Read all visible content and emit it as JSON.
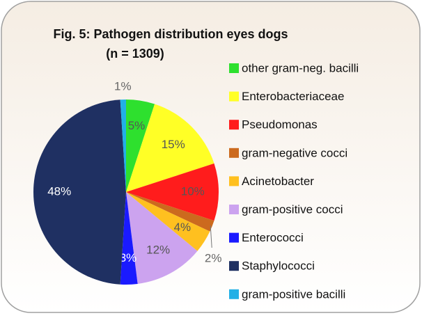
{
  "chart_data": {
    "type": "pie",
    "title": "Fig. 5: Pathogen distribution eyes dogs",
    "subtitle": "(n = 1309)",
    "categories": [
      "other gram-neg. bacilli",
      "Enterobacteriaceae",
      "Pseudomonas",
      "gram-negative cocci",
      "Acinetobacter",
      "gram-positive cocci",
      "Enterococci",
      "Staphylococci",
      "gram-positive bacilli"
    ],
    "values": [
      5,
      15,
      10,
      2,
      4,
      12,
      3,
      48,
      1
    ],
    "value_labels": [
      "5%",
      "15%",
      "10%",
      "2%",
      "4%",
      "12%",
      "3%",
      "48%",
      "1%"
    ],
    "colors": [
      "#2ee02e",
      "#ffff26",
      "#ff1c1c",
      "#cc6a1e",
      "#ffc01f",
      "#cca3ef",
      "#1a1aff",
      "#1f3062",
      "#22b0e6"
    ]
  }
}
